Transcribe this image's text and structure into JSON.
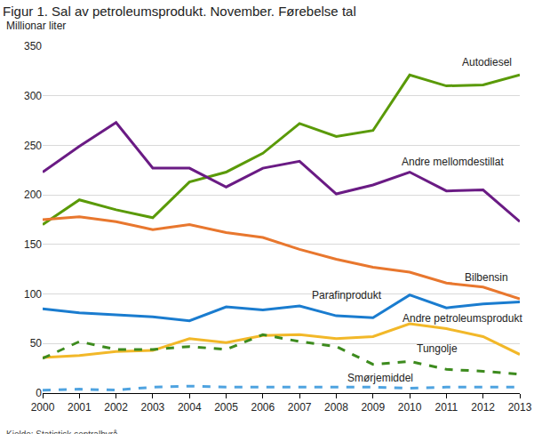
{
  "chart_data": {
    "type": "line",
    "title": "Figur 1. Sal av petroleumsprodukt. November. Førebelse tal",
    "y_label": "Millionar liter",
    "source": "Kjelde: Statistisk sentralbyrå.",
    "x": [
      2000,
      2001,
      2002,
      2003,
      2004,
      2005,
      2006,
      2007,
      2008,
      2009,
      2010,
      2011,
      2012,
      2013
    ],
    "xlim": [
      2000,
      2013
    ],
    "xticks": [
      2000,
      2001,
      2002,
      2003,
      2004,
      2005,
      2006,
      2007,
      2008,
      2009,
      2010,
      2011,
      2012,
      2013
    ],
    "ylim": [
      0,
      350
    ],
    "yticks": [
      0,
      50,
      100,
      150,
      200,
      250,
      300,
      350
    ],
    "grid": true,
    "series": [
      {
        "name": "Autodiesel",
        "color": "#5a9a08",
        "line_style": "solid",
        "values": [
          170,
          195,
          185,
          177,
          213,
          223,
          242,
          272,
          259,
          265,
          321,
          310,
          311,
          321
        ]
      },
      {
        "name": "Andre mellomdestillat",
        "color": "#6a1b84",
        "line_style": "solid",
        "values": [
          223,
          249,
          273,
          227,
          227,
          208,
          227,
          234,
          201,
          210,
          223,
          204,
          205,
          173
        ]
      },
      {
        "name": "Bilbensin",
        "color": "#e8772e",
        "line_style": "solid",
        "values": [
          175,
          178,
          173,
          165,
          170,
          162,
          157,
          145,
          135,
          127,
          122,
          111,
          107,
          95
        ]
      },
      {
        "name": "Parafinprodukt",
        "color": "#1a7ccf",
        "line_style": "solid",
        "values": [
          85,
          81,
          79,
          77,
          73,
          87,
          84,
          88,
          78,
          76,
          99,
          86,
          90,
          92
        ]
      },
      {
        "name": "Andre petroleumsprodukt",
        "color": "#f2b829",
        "line_style": "solid",
        "values": [
          36,
          38,
          42,
          43,
          55,
          51,
          58,
          59,
          55,
          57,
          70,
          65,
          57,
          39
        ]
      },
      {
        "name": "Tungolje",
        "color": "#3d8b1e",
        "line_style": "dash",
        "values": [
          35,
          52,
          44,
          44,
          47,
          44,
          59,
          52,
          47,
          29,
          32,
          24,
          22,
          19
        ]
      },
      {
        "name": "Smørjemiddel",
        "color": "#4fa3e0",
        "line_style": "dash",
        "values": [
          3,
          4,
          3,
          6,
          7,
          6,
          6,
          6,
          6,
          6,
          5,
          6,
          6,
          6
        ]
      }
    ]
  }
}
